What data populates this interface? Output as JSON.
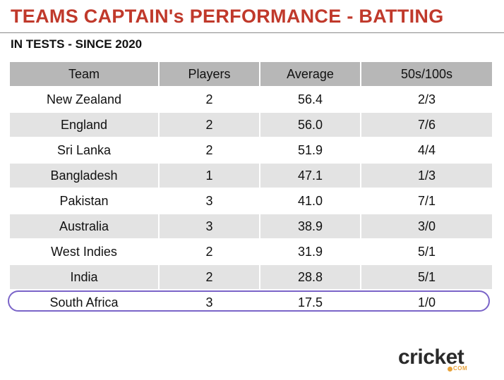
{
  "colors": {
    "title": "#c0392b",
    "header_bg": "#b7b7b7",
    "row_odd": "#ffffff",
    "row_even": "#e3e3e3",
    "highlight": "#7a64c8",
    "logo_accent": "#e8a23a"
  },
  "header": {
    "title": "TEAMS CAPTAIN's PERFORMANCE - BATTING",
    "subtitle": "IN TESTS - SINCE 2020"
  },
  "chart_data": {
    "type": "table",
    "columns": [
      "Team",
      "Players",
      "Average",
      "50s/100s"
    ],
    "rows": [
      {
        "team": "New Zealand",
        "players": "2",
        "average": "56.4",
        "fifties_hundreds": "2/3"
      },
      {
        "team": "England",
        "players": "2",
        "average": "56.0",
        "fifties_hundreds": "7/6"
      },
      {
        "team": "Sri Lanka",
        "players": "2",
        "average": "51.9",
        "fifties_hundreds": "4/4"
      },
      {
        "team": "Bangladesh",
        "players": "1",
        "average": "47.1",
        "fifties_hundreds": "1/3"
      },
      {
        "team": "Pakistan",
        "players": "3",
        "average": "41.0",
        "fifties_hundreds": "7/1"
      },
      {
        "team": "Australia",
        "players": "3",
        "average": "38.9",
        "fifties_hundreds": "3/0"
      },
      {
        "team": "West Indies",
        "players": "2",
        "average": "31.9",
        "fifties_hundreds": "5/1"
      },
      {
        "team": "India",
        "players": "2",
        "average": "28.8",
        "fifties_hundreds": "5/1"
      },
      {
        "team": "South Africa",
        "players": "3",
        "average": "17.5",
        "fifties_hundreds": "1/0"
      }
    ],
    "highlighted_team": "South Africa"
  },
  "logo": {
    "text": "cricket",
    "sub": "COM"
  }
}
